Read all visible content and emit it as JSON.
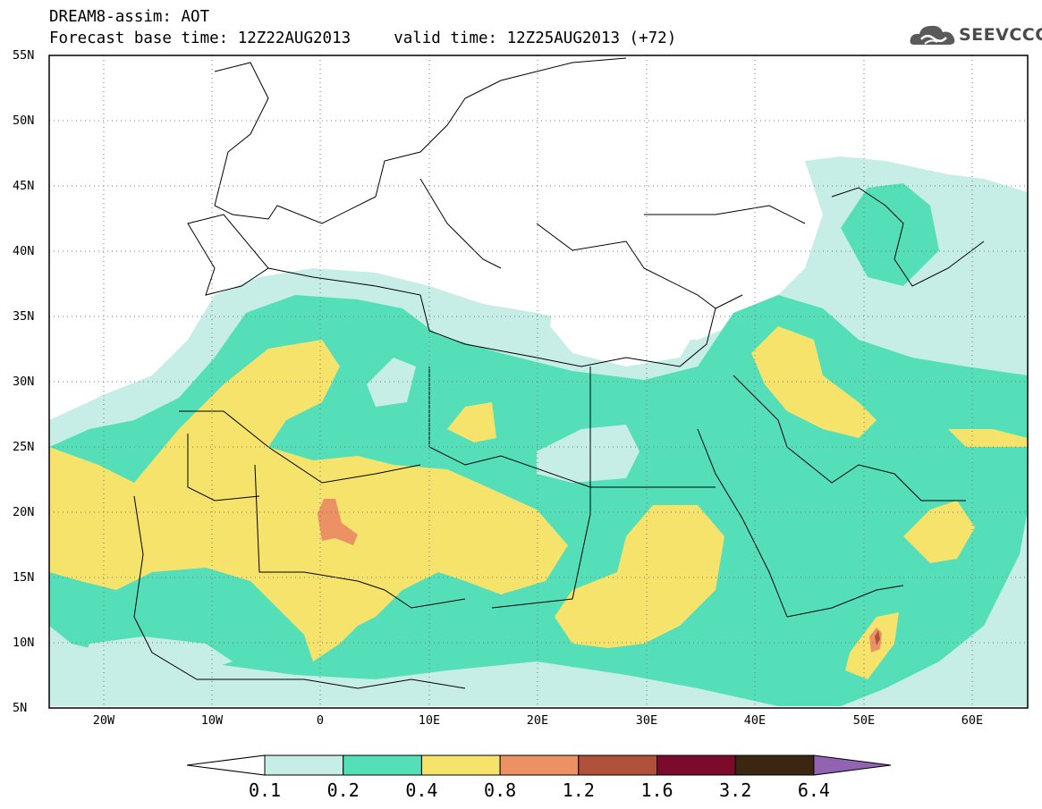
{
  "header": {
    "title": "DREAM8-assim: AOT",
    "base_time": "Forecast base time: 12Z22AUG2013",
    "valid_time": "valid time: 12Z25AUG2013 (+72)"
  },
  "logo": {
    "text": "SEEVCCC",
    "icon": "cloud-icon"
  },
  "map": {
    "lon_range": [
      -25,
      65
    ],
    "lat_range": [
      5,
      55
    ],
    "lat_labels": [
      "55N",
      "50N",
      "45N",
      "40N",
      "35N",
      "30N",
      "25N",
      "20N",
      "15N",
      "10N",
      "5N"
    ],
    "lon_labels": [
      "20W",
      "10W",
      "0",
      "10E",
      "20E",
      "30E",
      "40E",
      "50E",
      "60E"
    ],
    "gridlines": "dotted"
  },
  "colorbar": {
    "levels": [
      "0.1",
      "0.2",
      "0.4",
      "0.8",
      "1.2",
      "1.6",
      "3.2",
      "6.4"
    ],
    "colors": [
      "#ffffff",
      "#c6eee6",
      "#55dfb8",
      "#f5e36c",
      "#ec9164",
      "#b0513c",
      "#7c0a2c",
      "#3b2611",
      "#9263b3"
    ]
  }
}
